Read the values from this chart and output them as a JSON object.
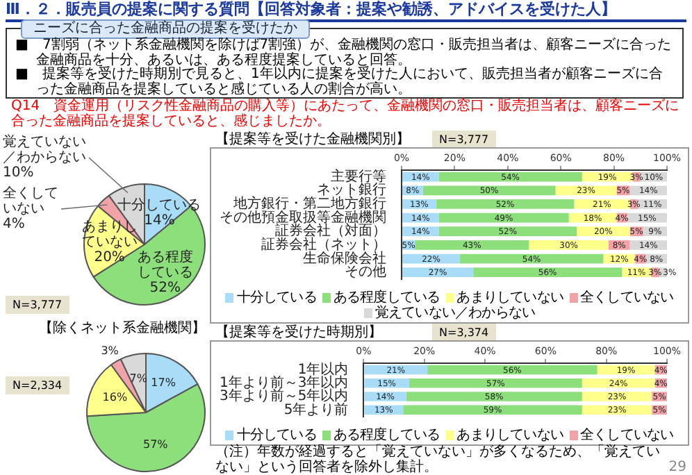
{
  "chart_data": [
    {
      "type": "other",
      "title": "Ⅲ．２．販売員の提案に関する質問【回答対象者：提案や勧誘、アドバイスを受けた人】",
      "subtitle": "ニーズに合った金融商品の提案を受けたか",
      "annotations": [
        "■　7割弱（ネット系金融機関を除けば7割強）が、金融機関の窓口・販売担当者は、顧客ニーズに合った金融商品を十分、あるいは、ある程度提案していると回答。",
        "■　提案等を受けた時期別で見ると、1年以内に提案を受けた人において、販売担当者が顧客ニーズに合った金融商品を提案していると感じている人の割合が高い。",
        "Q14　資金運用（リスク性金融商品の購入等）にあたって、金融機関の窓口・販売担当者は、顧客ニーズに合った金融商品を提案していると、感じましたか。",
        "29"
      ]
    },
    {
      "type": "pie",
      "annotations": [
        "N=3,777"
      ],
      "categories": [
        "十分している",
        "ある程度している",
        "あまりしていない",
        "全くしていない",
        "覚えていない／わからない"
      ],
      "values": [
        14,
        52,
        20,
        4,
        10
      ],
      "value_labels": [
        "14%",
        "52%",
        "20%",
        "4%",
        "10%"
      ],
      "colors": [
        "#a9dcf7",
        "#8ddf7c",
        "#ffff8c",
        "#f2a3a8",
        "#d9d9d9"
      ],
      "data_labels": true
    },
    {
      "type": "pie",
      "title": "【除くネット系金融機関】",
      "annotations": [
        "N=2,334"
      ],
      "categories": [
        null,
        null,
        null,
        null,
        null
      ],
      "values": [
        17,
        57,
        16,
        3,
        7
      ],
      "value_labels": [
        "17%",
        "57%",
        "16%",
        "3%",
        "7%"
      ],
      "colors": [
        "#a9dcf7",
        "#8ddf7c",
        "#ffff8c",
        "#f2a3a8",
        "#d9d9d9"
      ],
      "data_labels": true
    },
    {
      "type": "bar",
      "title": "【提案等を受けた金融機関別】",
      "annotations": [
        "N=3,777"
      ],
      "orientation": "horizontal",
      "stacked": true,
      "legend": "bottom",
      "data_labels": true,
      "xlim": [
        0,
        100
      ],
      "xticks": [
        {
          "value": 0,
          "label": "0%"
        },
        {
          "value": 20,
          "label": "20%"
        },
        {
          "value": 40,
          "label": "40%"
        },
        {
          "value": 60,
          "label": "60%"
        },
        {
          "value": 80,
          "label": "80%"
        },
        {
          "value": 100,
          "label": "100%"
        }
      ],
      "categories": [
        "主要行等",
        "ネット銀行",
        "地方銀行・第二地方銀行",
        "その他預金取扱等金融機関",
        "証券会社（対面）",
        "証券会社（ネット）",
        "生命保険会社",
        "その他"
      ],
      "series": [
        {
          "name": "十分している",
          "color": "#a9dcf7",
          "values": [
            14,
            8,
            13,
            14,
            14,
            5,
            22,
            27
          ],
          "value_labels": [
            "14%",
            "8%",
            "13%",
            "14%",
            "14%",
            "5%",
            "22%",
            "27%"
          ]
        },
        {
          "name": "ある程度している",
          "color": "#8ddf7c",
          "values": [
            54,
            50,
            52,
            49,
            52,
            43,
            54,
            56
          ],
          "value_labels": [
            "54%",
            "50%",
            "52%",
            "49%",
            "52%",
            "43%",
            "54%",
            "56%"
          ]
        },
        {
          "name": "あまりしていない",
          "color": "#ffff8c",
          "values": [
            19,
            23,
            21,
            18,
            20,
            30,
            12,
            11
          ],
          "value_labels": [
            "19%",
            "23%",
            "21%",
            "18%",
            "20%",
            "30%",
            "12%",
            "11%"
          ]
        },
        {
          "name": "全くしていない",
          "color": "#f2a3a8",
          "values": [
            3,
            5,
            3,
            4,
            5,
            8,
            4,
            3
          ],
          "value_labels": [
            "3%",
            "5%",
            "3%",
            "4%",
            "5%",
            "8%",
            "4%",
            "3%"
          ]
        },
        {
          "name": "覚えていない／わからない",
          "color": "#d9d9d9",
          "values": [
            10,
            14,
            11,
            15,
            9,
            14,
            8,
            3
          ],
          "value_labels": [
            "10%",
            "14%",
            "11%",
            "15%",
            "9%",
            "14%",
            "8%",
            "3%"
          ]
        }
      ]
    },
    {
      "type": "bar",
      "title": "【提案等を受けた時期別】",
      "annotations": [
        "N=3,374",
        "（注）年数が経過すると「覚えていない」が多くなるため、「覚えていない」という回答者を除外し集計。"
      ],
      "orientation": "horizontal",
      "stacked": true,
      "legend": "bottom",
      "data_labels": true,
      "xlim": [
        0,
        100
      ],
      "xticks": [
        {
          "value": 0,
          "label": "0%"
        },
        {
          "value": 20,
          "label": "20%"
        },
        {
          "value": 40,
          "label": "40%"
        },
        {
          "value": 60,
          "label": "60%"
        },
        {
          "value": 80,
          "label": "80%"
        },
        {
          "value": 100,
          "label": "100%"
        }
      ],
      "categories": [
        "1年以内",
        "1年より前～3年以内",
        "3年より前～5年以内",
        "5年より前"
      ],
      "series": [
        {
          "name": "十分している",
          "color": "#a9dcf7",
          "values": [
            21,
            15,
            14,
            13
          ],
          "value_labels": [
            "21%",
            "15%",
            "14%",
            "13%"
          ]
        },
        {
          "name": "ある程度している",
          "color": "#8ddf7c",
          "values": [
            56,
            57,
            58,
            59
          ],
          "value_labels": [
            "56%",
            "57%",
            "58%",
            "59%"
          ]
        },
        {
          "name": "あまりしていない",
          "color": "#ffff8c",
          "values": [
            19,
            24,
            23,
            23
          ],
          "value_labels": [
            "19%",
            "24%",
            "23%",
            "23%"
          ]
        },
        {
          "name": "全くしていない",
          "color": "#f2a3a8",
          "values": [
            4,
            4,
            5,
            5
          ],
          "value_labels": [
            "4%",
            "4%",
            "5%",
            "5%"
          ]
        }
      ]
    }
  ]
}
